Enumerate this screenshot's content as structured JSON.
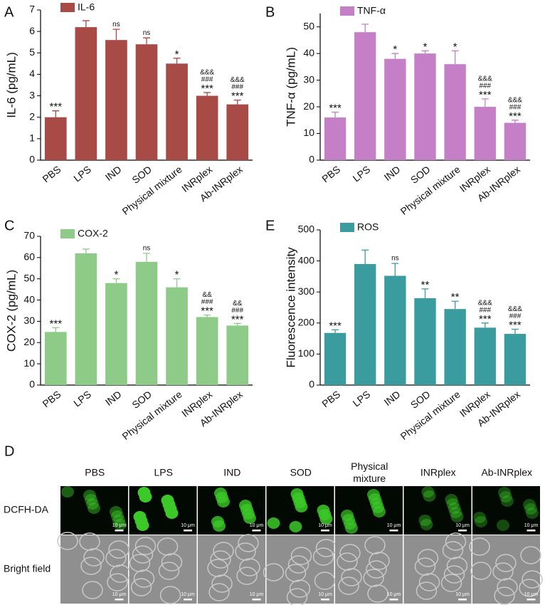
{
  "chart_data": [
    {
      "type": "bar",
      "panel": "A",
      "ylabel": "IL-6 (pg/mL)",
      "categories": [
        "PBS",
        "LPS",
        "IND",
        "SOD",
        "Physical mixture",
        "INRplex",
        "Ab-INRplex"
      ],
      "series": [
        {
          "name": "IL-6",
          "color": "#a84b47",
          "values": [
            2.0,
            6.2,
            5.6,
            5.4,
            4.5,
            3.0,
            2.6
          ],
          "errors": [
            0.3,
            0.3,
            0.5,
            0.3,
            0.25,
            0.15,
            0.2
          ]
        }
      ],
      "annotations": [
        [
          "***"
        ],
        [],
        [
          "ns"
        ],
        [
          "ns"
        ],
        [
          "*"
        ],
        [
          "&&&",
          "###",
          "***"
        ],
        [
          "&&&",
          "###",
          "***"
        ]
      ],
      "ylim": [
        0,
        7
      ],
      "yticks": [
        0,
        1,
        2,
        3,
        4,
        5,
        6,
        7
      ]
    },
    {
      "type": "bar",
      "panel": "B",
      "ylabel": "TNF-α (pg/mL)",
      "categories": [
        "PBS",
        "LPS",
        "IND",
        "SOD",
        "Physical mixture",
        "INRplex",
        "Ab-INRplex"
      ],
      "series": [
        {
          "name": "TNF-α",
          "color": "#c57fc6",
          "values": [
            16,
            48,
            38,
            40,
            36,
            20,
            14
          ],
          "errors": [
            2,
            3,
            2,
            1,
            5,
            3,
            1
          ]
        }
      ],
      "annotations": [
        [
          "***"
        ],
        [],
        [
          "*"
        ],
        [
          "*"
        ],
        [
          "*"
        ],
        [
          "&&&",
          "###",
          "***"
        ],
        [
          "&&&",
          "###",
          "***"
        ]
      ],
      "ylim": [
        0,
        55
      ],
      "yticks": [
        0,
        10,
        20,
        30,
        40,
        50
      ]
    },
    {
      "type": "bar",
      "panel": "C",
      "ylabel": "COX-2 (pg/mL)",
      "categories": [
        "PBS",
        "LPS",
        "IND",
        "SOD",
        "Physical mixture",
        "INRplex",
        "Ab-INRplex"
      ],
      "series": [
        {
          "name": "COX-2",
          "color": "#8ecb89",
          "values": [
            25,
            62,
            48,
            58,
            46,
            32,
            28
          ],
          "errors": [
            2,
            2,
            2,
            4,
            4,
            1,
            1
          ]
        }
      ],
      "annotations": [
        [
          "***"
        ],
        [],
        [
          "*"
        ],
        [
          "ns"
        ],
        [
          "*"
        ],
        [
          "&&",
          "###",
          "***"
        ],
        [
          "&&",
          "###",
          "***"
        ]
      ],
      "ylim": [
        0,
        70
      ],
      "yticks": [
        0,
        10,
        20,
        30,
        40,
        50,
        60,
        70
      ]
    },
    {
      "type": "bar",
      "panel": "E",
      "ylabel": "Fluorescence intensity",
      "categories": [
        "PBS",
        "LPS",
        "IND",
        "SOD",
        "Physical mixture",
        "INRplex",
        "Ab-INRplex"
      ],
      "series": [
        {
          "name": "ROS",
          "color": "#3a9c9f",
          "values": [
            168,
            390,
            352,
            280,
            245,
            185,
            165
          ],
          "errors": [
            10,
            45,
            40,
            30,
            25,
            15,
            15
          ]
        }
      ],
      "annotations": [
        [
          "***"
        ],
        [],
        [
          "ns"
        ],
        [
          "**"
        ],
        [
          "**"
        ],
        [
          "&&&",
          "###",
          "***"
        ],
        [
          "&&&",
          "###",
          "***"
        ]
      ],
      "ylim": [
        0,
        500
      ],
      "yticks": [
        0,
        100,
        200,
        300,
        400,
        500
      ]
    }
  ],
  "image_panel": {
    "panel": "D",
    "columns": [
      "PBS",
      "LPS",
      "IND",
      "SOD",
      "Physical mixture",
      "INRplex",
      "Ab-INRplex"
    ],
    "rows": [
      "DCFH-DA",
      "Bright field"
    ],
    "scale_bar": "10 μm"
  }
}
